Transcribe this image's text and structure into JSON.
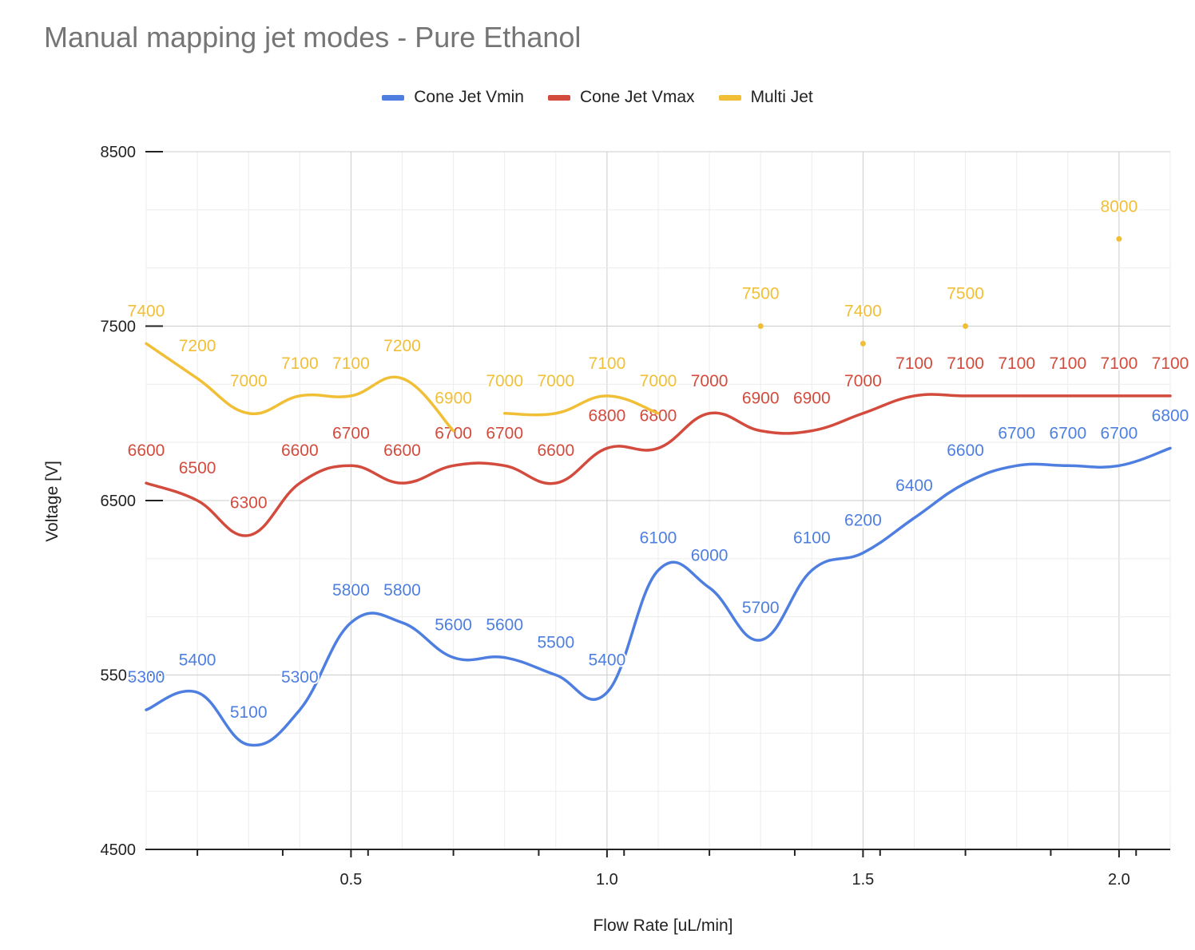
{
  "chart_data": {
    "type": "line",
    "title": "Manual mapping jet modes - Pure Ethanol",
    "xlabel": "Flow Rate [uL/min]",
    "ylabel": "Voltage [V]",
    "xlim": [
      0.1,
      2.1
    ],
    "ylim": [
      4500,
      8500
    ],
    "x_ticks": [
      "0.5",
      "1.0",
      "1.5",
      "2.0"
    ],
    "x_tick_values": [
      0.5,
      1.0,
      1.5,
      2.0
    ],
    "y_ticks": [
      "4500",
      "5500",
      "6500",
      "7500",
      "8500"
    ],
    "y_tick_values": [
      4500,
      5500,
      6500,
      7500,
      8500
    ],
    "grid": true,
    "legend_position": "top",
    "series": [
      {
        "name": "Cone Jet Vmin",
        "color": "#4e7fe0",
        "x": [
          0.1,
          0.2,
          0.3,
          0.4,
          0.5,
          0.6,
          0.7,
          0.8,
          0.9,
          1.0,
          1.1,
          1.2,
          1.3,
          1.4,
          1.5,
          1.6,
          1.7,
          1.8,
          1.9,
          2.0,
          2.1
        ],
        "y": [
          5300,
          5400,
          5100,
          5300,
          5800,
          5800,
          5600,
          5600,
          5500,
          5400,
          6100,
          6000,
          5700,
          6100,
          6200,
          6400,
          6600,
          6700,
          6700,
          6700,
          6800
        ],
        "labels": [
          "5300",
          "5400",
          "5100",
          "5300",
          "5800",
          "5800",
          "5600",
          "5600",
          "5500",
          "5400",
          "6100",
          "6000",
          "5700",
          "6100",
          "6200",
          "6400",
          "6600",
          "6700",
          "6700",
          "6700",
          "6800"
        ]
      },
      {
        "name": "Cone Jet Vmax",
        "color": "#d34b3d",
        "x": [
          0.1,
          0.2,
          0.3,
          0.4,
          0.5,
          0.6,
          0.7,
          0.8,
          0.9,
          1.0,
          1.1,
          1.2,
          1.3,
          1.4,
          1.5,
          1.6,
          1.7,
          1.8,
          1.9,
          2.0,
          2.1
        ],
        "y": [
          6600,
          6500,
          6300,
          6600,
          6700,
          6600,
          6700,
          6700,
          6600,
          6800,
          6800,
          7000,
          6900,
          6900,
          7000,
          7100,
          7100,
          7100,
          7100,
          7100,
          7100
        ],
        "labels": [
          "6600",
          "6500",
          "6300",
          "6600",
          "6700",
          "6600",
          "6700",
          "6700",
          "6600",
          "6800",
          "6800",
          "7000",
          "6900",
          "6900",
          "7000",
          "7100",
          "7100",
          "7100",
          "7100",
          "7100",
          "7100"
        ]
      },
      {
        "name": "Multi Jet",
        "color": "#f1bf36",
        "segments": [
          {
            "x": [
              0.1,
              0.2,
              0.3,
              0.4,
              0.5,
              0.6,
              0.7
            ],
            "y": [
              7400,
              7200,
              7000,
              7100,
              7100,
              7200,
              6900
            ]
          },
          {
            "x": [
              0.8,
              0.9,
              1.0,
              1.1
            ],
            "y": [
              7000,
              7000,
              7100,
              7000
            ]
          }
        ],
        "points": [
          {
            "x": 1.3,
            "y": 7500
          },
          {
            "x": 1.5,
            "y": 7400
          },
          {
            "x": 1.7,
            "y": 7500
          },
          {
            "x": 2.0,
            "y": 8000
          }
        ],
        "x": [
          0.1,
          0.2,
          0.3,
          0.4,
          0.5,
          0.6,
          0.7,
          0.8,
          0.9,
          1.0,
          1.1,
          1.3,
          1.5,
          1.7,
          2.0
        ],
        "y": [
          7400,
          7200,
          7000,
          7100,
          7100,
          7200,
          6900,
          7000,
          7000,
          7100,
          7000,
          7500,
          7400,
          7500,
          8000
        ],
        "labels": [
          "7400",
          "7200",
          "7000",
          "7100",
          "7100",
          "7200",
          "6900",
          "7000",
          "7000",
          "7100",
          "7000",
          "7500",
          "7400",
          "7500",
          "8000"
        ]
      }
    ]
  }
}
